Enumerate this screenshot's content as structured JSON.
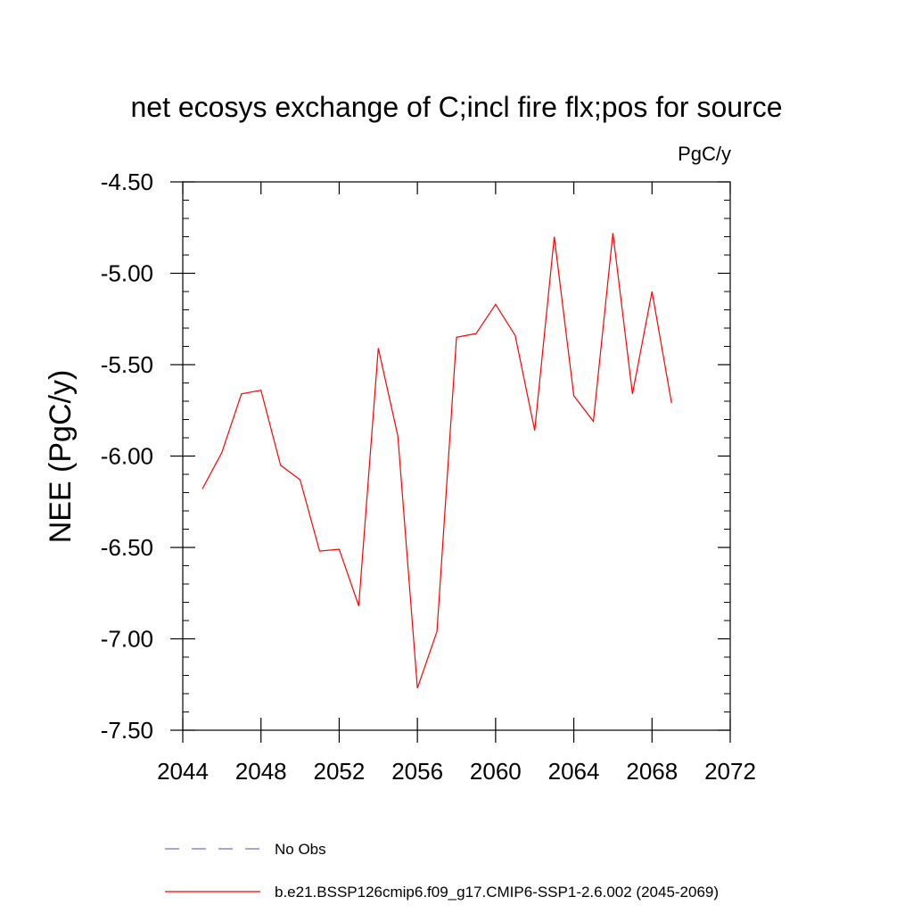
{
  "chart_data": {
    "type": "line",
    "title": "net ecosys exchange of C;incl fire flx;pos for source",
    "units": "PgC/y",
    "xlabel": "",
    "ylabel": "NEE  (PgC/y)",
    "xlim": [
      2044,
      2072
    ],
    "ylim": [
      -7.5,
      -4.5
    ],
    "x_ticks": [
      2044,
      2048,
      2052,
      2056,
      2060,
      2064,
      2068,
      2072
    ],
    "y_ticks": [
      -4.5,
      -5.0,
      -5.5,
      -6.0,
      -6.5,
      -7.0,
      -7.5
    ],
    "x_tick_labels": [
      "2044",
      "2048",
      "2052",
      "2056",
      "2060",
      "2064",
      "2068",
      "2072"
    ],
    "y_tick_labels": [
      "-4.50",
      "-5.00",
      "-5.50",
      "-6.00",
      "-6.50",
      "-7.00",
      "-7.50"
    ],
    "grid": false,
    "series": [
      {
        "name": "b.e21.BSSP126cmip6.f09_g17.CMIP6-SSP1-2.6.002 (2045-2069)",
        "color": "#ff0000",
        "style": "solid",
        "x": [
          2045,
          2046,
          2047,
          2048,
          2049,
          2050,
          2051,
          2052,
          2053,
          2054,
          2055,
          2056,
          2057,
          2058,
          2059,
          2060,
          2061,
          2062,
          2063,
          2064,
          2065,
          2066,
          2067,
          2068,
          2069
        ],
        "values": [
          -6.18,
          -5.98,
          -5.66,
          -5.64,
          -6.05,
          -6.13,
          -6.52,
          -6.51,
          -6.82,
          -5.41,
          -5.89,
          -7.27,
          -6.96,
          -5.35,
          -5.33,
          -5.17,
          -5.34,
          -5.86,
          -4.8,
          -5.67,
          -5.81,
          -4.78,
          -5.66,
          -5.1,
          -5.71
        ]
      }
    ],
    "legend": [
      {
        "label": "No Obs",
        "color": "#7070c0",
        "style": "dashed"
      },
      {
        "label": "b.e21.BSSP126cmip6.f09_g17.CMIP6-SSP1-2.6.002 (2045-2069)",
        "color": "#ff0000",
        "style": "solid"
      }
    ],
    "legend_position": "bottom"
  }
}
